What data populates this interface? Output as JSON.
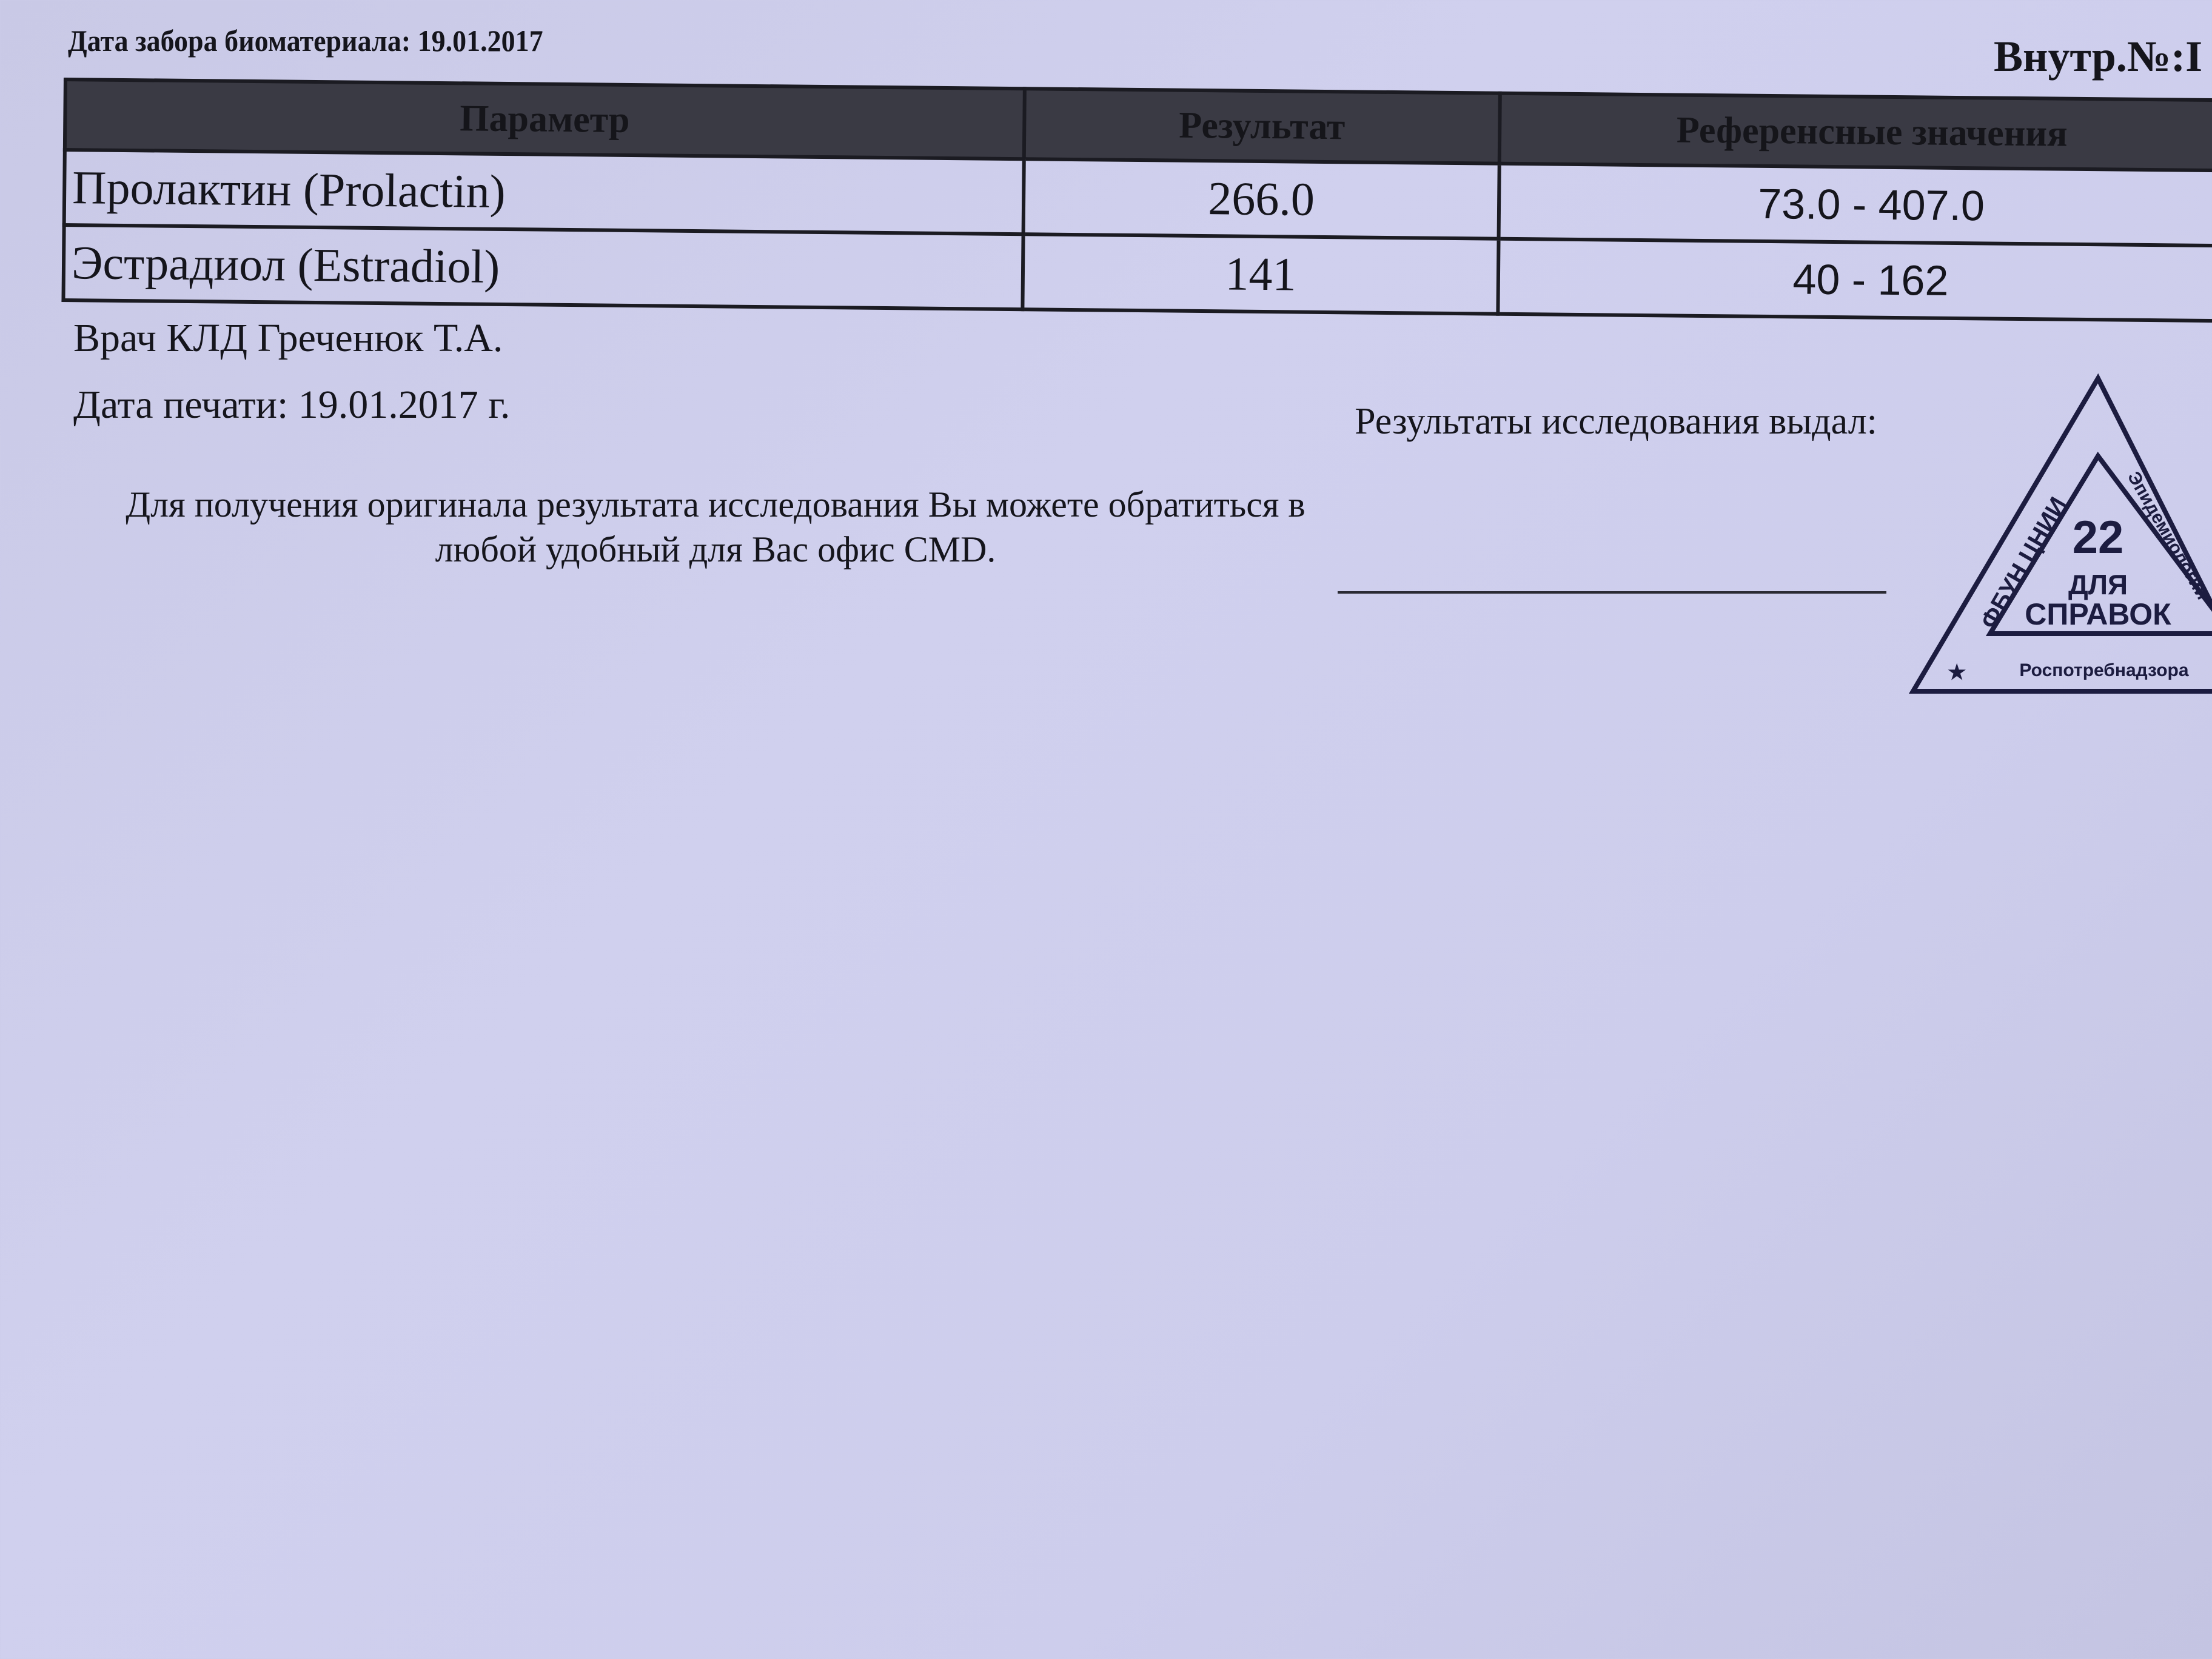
{
  "header": {
    "collection_date": "Дата забора биоматериала: 19.01.2017",
    "internal_no": "Внутр.№:I"
  },
  "table": {
    "columns": [
      "Параметр",
      "Результат",
      "Референсные значения"
    ],
    "rows": [
      {
        "parameter": "Пролактин (Prolactin)",
        "result": "266.0",
        "reference": "73.0 - 407.0"
      },
      {
        "parameter": "Эстрадиол (Estradiol)",
        "result": "141",
        "reference": "40 - 162"
      }
    ]
  },
  "doctor": "Врач КЛД Греченюк Т.А.",
  "print_date": "Дата печати: 19.01.2017 г.",
  "notice": "Для получения оригинала результата исследования Вы можете обратиться в любой удобный для Вас офис CMD.",
  "issued_by": "Результаты исследования выдал:",
  "stamp": {
    "left_text": "ФБУН ЦНИИ",
    "right_text": "Эпидемиологии",
    "number": "22",
    "line1": "ДЛЯ",
    "line2": "СПРАВОК",
    "bottom_text": "Роспотребнадзора",
    "color": "#1c1c40"
  },
  "colors": {
    "background": "#cdcdeb",
    "table_header": "#3a3a44"
  }
}
